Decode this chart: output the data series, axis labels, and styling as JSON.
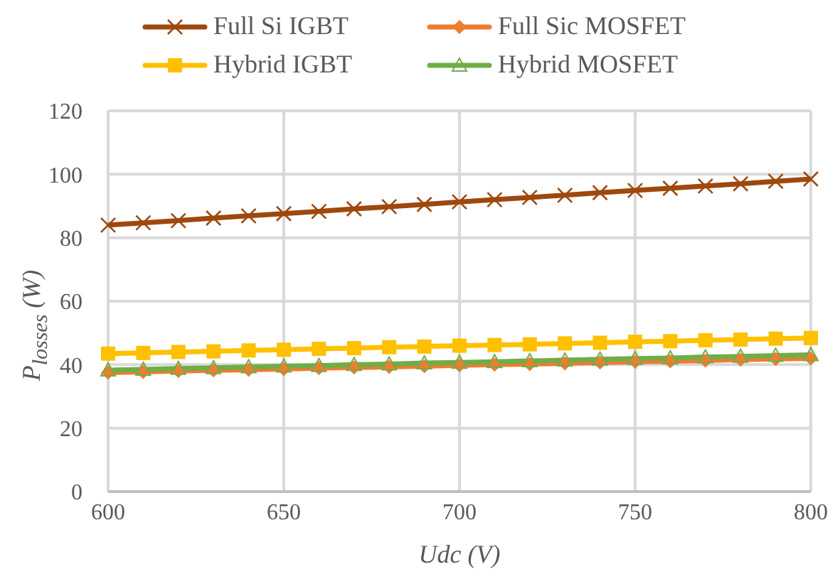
{
  "chart_data": {
    "type": "line",
    "xlabel": "Udc (V)",
    "ylabel": "P$_{losses}$ (W)",
    "x": [
      600,
      610,
      620,
      630,
      640,
      650,
      660,
      670,
      680,
      690,
      700,
      710,
      720,
      730,
      740,
      750,
      760,
      770,
      780,
      790,
      800
    ],
    "series": [
      {
        "name": "Full Si IGBT",
        "color": "#9e480e",
        "marker": "cross",
        "values": [
          84.0,
          84.7,
          85.4,
          86.2,
          86.9,
          87.6,
          88.3,
          89.1,
          89.8,
          90.5,
          91.3,
          92.0,
          92.7,
          93.4,
          94.2,
          94.9,
          95.6,
          96.3,
          97.0,
          97.8,
          98.5
        ]
      },
      {
        "name": "Full Sic MOSFET",
        "color": "#ed7d31",
        "marker": "diamond",
        "values": [
          37.5,
          37.7,
          38.0,
          38.2,
          38.4,
          38.6,
          38.9,
          39.1,
          39.3,
          39.5,
          39.8,
          40.0,
          40.2,
          40.4,
          40.7,
          40.9,
          41.1,
          41.3,
          41.6,
          41.8,
          42.0
        ]
      },
      {
        "name": "Hybrid IGBT",
        "color": "#ffc000",
        "marker": "square",
        "values": [
          43.5,
          43.7,
          44.0,
          44.2,
          44.5,
          44.7,
          45.0,
          45.2,
          45.5,
          45.7,
          46.0,
          46.2,
          46.4,
          46.7,
          46.9,
          47.2,
          47.4,
          47.7,
          47.9,
          48.2,
          48.4
        ]
      },
      {
        "name": "Hybrid MOSFET",
        "color": "#70ad47",
        "marker": "triangle",
        "values": [
          38.3,
          38.5,
          38.8,
          39.0,
          39.3,
          39.5,
          39.7,
          40.0,
          40.2,
          40.5,
          40.7,
          40.9,
          41.2,
          41.4,
          41.7,
          41.9,
          42.1,
          42.4,
          42.6,
          42.9,
          43.1
        ]
      }
    ],
    "xlim": [
      600,
      800
    ],
    "xticks": [
      600,
      650,
      700,
      750,
      800
    ],
    "ylim": [
      0,
      120
    ],
    "yticks": [
      0,
      20,
      40,
      60,
      80,
      100,
      120
    ],
    "grid": true,
    "legend": "top"
  }
}
